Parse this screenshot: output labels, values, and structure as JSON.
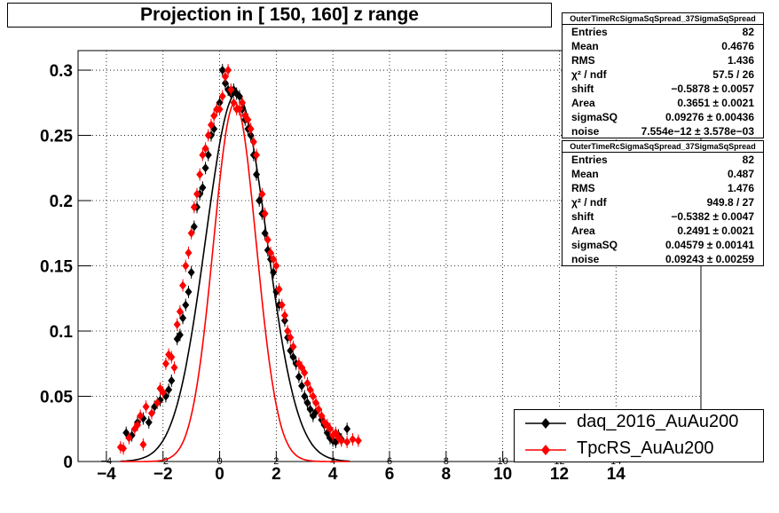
{
  "title": "Projection in [ 150, 160] z range",
  "stats_boxes": [
    {
      "name": "OuterTimeRcSigmaSqSpread_37SigmaSqSpread",
      "rows": [
        {
          "key": "Entries",
          "value": "82"
        },
        {
          "key": "Mean",
          "value": "0.4676"
        },
        {
          "key": "RMS",
          "value": "1.436"
        },
        {
          "key": "χ² / ndf",
          "value": "57.5 / 26"
        },
        {
          "key": "shift",
          "value": "−0.5878 ± 0.0057"
        },
        {
          "key": "Area",
          "value": "0.3651 ± 0.0021"
        },
        {
          "key": "sigmaSQ",
          "value": "0.09276 ± 0.00436"
        },
        {
          "key": "noise",
          "value": "7.554e−12 ± 3.578e−03"
        }
      ]
    },
    {
      "name": "OuterTimeRcSigmaSqSpread_37SigmaSqSpread",
      "rows": [
        {
          "key": "Entries",
          "value": "82"
        },
        {
          "key": "Mean",
          "value": "0.487"
        },
        {
          "key": "RMS",
          "value": "1.476"
        },
        {
          "key": "χ² / ndf",
          "value": "949.8 / 27"
        },
        {
          "key": "shift",
          "value": "−0.5382 ± 0.0047"
        },
        {
          "key": "Area",
          "value": "0.2491 ± 0.0021"
        },
        {
          "key": "sigmaSQ",
          "value": "0.04579 ± 0.00141"
        },
        {
          "key": "noise",
          "value": "0.09243 ± 0.00259"
        }
      ]
    }
  ],
  "chart_data": {
    "type": "scatter",
    "title": "Projection in [ 150, 160] z range",
    "xlabel": "",
    "ylabel": "",
    "xlim": [
      -5,
      17
    ],
    "ylim": [
      0,
      0.315
    ],
    "x_ticks": [
      "−4",
      "−2",
      "0",
      "2",
      "4",
      "6",
      "8",
      "10",
      "12",
      "14"
    ],
    "y_ticks": [
      "0",
      "0.05",
      "0.1",
      "0.15",
      "0.2",
      "0.25",
      "0.3"
    ],
    "grid": true,
    "legend_position": "bottom-right",
    "series": [
      {
        "name": "daq_2016_AuAu200",
        "color": "#000000",
        "points": [
          [
            -3.3,
            0.022
          ],
          [
            -3.1,
            0.02
          ],
          [
            -2.9,
            0.03
          ],
          [
            -2.7,
            0.033
          ],
          [
            -2.5,
            0.03
          ],
          [
            -2.3,
            0.042
          ],
          [
            -2.1,
            0.047
          ],
          [
            -1.9,
            0.05
          ],
          [
            -1.8,
            0.055
          ],
          [
            -1.7,
            0.062
          ],
          [
            -1.5,
            0.094
          ],
          [
            -1.4,
            0.097
          ],
          [
            -1.3,
            0.11
          ],
          [
            -1.2,
            0.12
          ],
          [
            -1.1,
            0.13
          ],
          [
            -1.0,
            0.145
          ],
          [
            -0.9,
            0.18
          ],
          [
            -0.8,
            0.195
          ],
          [
            -0.7,
            0.205
          ],
          [
            -0.6,
            0.21
          ],
          [
            -0.5,
            0.225
          ],
          [
            -0.4,
            0.235
          ],
          [
            -0.3,
            0.25
          ],
          [
            -0.2,
            0.255
          ],
          [
            -0.1,
            0.27
          ],
          [
            0.0,
            0.275
          ],
          [
            0.1,
            0.3
          ],
          [
            0.2,
            0.29
          ],
          [
            0.3,
            0.285
          ],
          [
            0.4,
            0.282
          ],
          [
            0.5,
            0.285
          ],
          [
            0.6,
            0.282
          ],
          [
            0.7,
            0.28
          ],
          [
            0.8,
            0.27
          ],
          [
            0.9,
            0.262
          ],
          [
            1.0,
            0.255
          ],
          [
            1.1,
            0.25
          ],
          [
            1.2,
            0.235
          ],
          [
            1.3,
            0.22
          ],
          [
            1.4,
            0.2
          ],
          [
            1.5,
            0.19
          ],
          [
            1.6,
            0.175
          ],
          [
            1.7,
            0.162
          ],
          [
            1.8,
            0.155
          ],
          [
            1.9,
            0.145
          ],
          [
            2.0,
            0.13
          ],
          [
            2.1,
            0.12
          ],
          [
            2.3,
            0.108
          ],
          [
            2.4,
            0.095
          ],
          [
            2.5,
            0.085
          ],
          [
            2.6,
            0.08
          ],
          [
            2.7,
            0.075
          ],
          [
            2.8,
            0.065
          ],
          [
            2.9,
            0.058
          ],
          [
            3.0,
            0.05
          ],
          [
            3.1,
            0.045
          ],
          [
            3.2,
            0.04
          ],
          [
            3.3,
            0.035
          ],
          [
            3.4,
            0.038
          ],
          [
            3.6,
            0.032
          ],
          [
            3.7,
            0.028
          ],
          [
            3.8,
            0.022
          ],
          [
            3.9,
            0.018
          ],
          [
            4.0,
            0.016
          ],
          [
            4.1,
            0.015
          ],
          [
            4.2,
            0.02
          ],
          [
            4.3,
            0.017
          ],
          [
            4.5,
            0.025
          ]
        ]
      },
      {
        "name": "TpcRS_AuAu200",
        "color": "#ff0000",
        "points": [
          [
            -3.5,
            0.011
          ],
          [
            -3.4,
            0.01
          ],
          [
            -3.2,
            0.018
          ],
          [
            -3.0,
            0.025
          ],
          [
            -2.9,
            0.028
          ],
          [
            -2.8,
            0.035
          ],
          [
            -2.7,
            0.013
          ],
          [
            -2.6,
            0.042
          ],
          [
            -2.4,
            0.037
          ],
          [
            -2.2,
            0.045
          ],
          [
            -2.1,
            0.056
          ],
          [
            -2.0,
            0.053
          ],
          [
            -1.9,
            0.075
          ],
          [
            -1.8,
            0.082
          ],
          [
            -1.7,
            0.08
          ],
          [
            -1.6,
            0.072
          ],
          [
            -1.5,
            0.105
          ],
          [
            -1.4,
            0.115
          ],
          [
            -1.3,
            0.135
          ],
          [
            -1.2,
            0.15
          ],
          [
            -1.1,
            0.16
          ],
          [
            -1.0,
            0.175
          ],
          [
            -0.9,
            0.195
          ],
          [
            -0.8,
            0.205
          ],
          [
            -0.7,
            0.22
          ],
          [
            -0.6,
            0.235
          ],
          [
            -0.5,
            0.24
          ],
          [
            -0.4,
            0.25
          ],
          [
            -0.3,
            0.258
          ],
          [
            -0.2,
            0.265
          ],
          [
            -0.1,
            0.27
          ],
          [
            0.0,
            0.27
          ],
          [
            0.1,
            0.28
          ],
          [
            0.2,
            0.295
          ],
          [
            0.3,
            0.3
          ],
          [
            0.4,
            0.285
          ],
          [
            0.5,
            0.275
          ],
          [
            0.6,
            0.27
          ],
          [
            0.7,
            0.27
          ],
          [
            0.8,
            0.275
          ],
          [
            0.9,
            0.265
          ],
          [
            1.0,
            0.262
          ],
          [
            1.1,
            0.255
          ],
          [
            1.2,
            0.245
          ],
          [
            1.3,
            0.235
          ],
          [
            1.5,
            0.205
          ],
          [
            1.6,
            0.19
          ],
          [
            1.7,
            0.17
          ],
          [
            1.8,
            0.16
          ],
          [
            1.9,
            0.155
          ],
          [
            2.0,
            0.15
          ],
          [
            2.1,
            0.132
          ],
          [
            2.2,
            0.12
          ],
          [
            2.3,
            0.112
          ],
          [
            2.4,
            0.1
          ],
          [
            2.5,
            0.095
          ],
          [
            2.6,
            0.088
          ],
          [
            2.8,
            0.075
          ],
          [
            2.9,
            0.072
          ],
          [
            3.0,
            0.068
          ],
          [
            3.1,
            0.06
          ],
          [
            3.2,
            0.055
          ],
          [
            3.3,
            0.05
          ],
          [
            3.4,
            0.045
          ],
          [
            3.5,
            0.04
          ],
          [
            3.6,
            0.035
          ],
          [
            3.7,
            0.03
          ],
          [
            3.8,
            0.028
          ],
          [
            3.9,
            0.025
          ],
          [
            4.0,
            0.02
          ],
          [
            4.1,
            0.022
          ],
          [
            4.2,
            0.018
          ],
          [
            4.3,
            0.016
          ],
          [
            4.5,
            0.015
          ],
          [
            4.7,
            0.017
          ],
          [
            4.9,
            0.016
          ]
        ]
      }
    ],
    "fits": [
      {
        "name": "daq_2016_AuAu200 fit",
        "color": "#000000",
        "shift": -0.5878,
        "area": 0.3651,
        "sigmaSQ": 0.09276,
        "noise": 0.0
      },
      {
        "name": "TpcRS_AuAu200 fit",
        "color": "#ff0000",
        "shift": -0.5382,
        "area": 0.2491,
        "sigmaSQ": 0.04579,
        "noise": 0.09243
      }
    ]
  }
}
